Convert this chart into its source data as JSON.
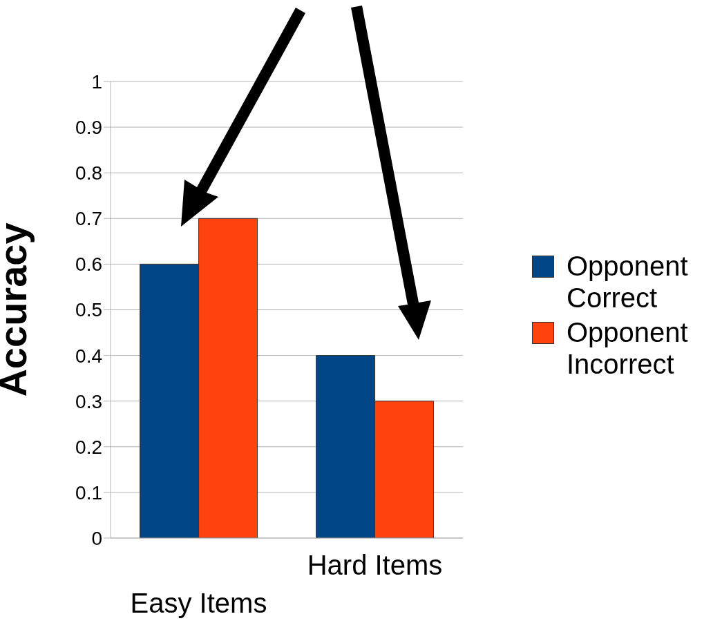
{
  "chart_data": {
    "type": "bar",
    "ylabel": "Accuracy",
    "categories": [
      "Easy Items",
      "Hard Items"
    ],
    "series": [
      {
        "name": "Opponent Correct",
        "color": "#004586",
        "values": [
          0.6,
          0.4
        ]
      },
      {
        "name": "Opponent Incorrect",
        "color": "#ff420e",
        "values": [
          0.7,
          0.3
        ]
      }
    ],
    "ylim": [
      0,
      1
    ],
    "yticks": [
      0,
      0.1,
      0.2,
      0.3,
      0.4,
      0.5,
      0.6,
      0.7,
      0.8,
      0.9,
      1
    ],
    "grid": "y",
    "legend": "right"
  }
}
